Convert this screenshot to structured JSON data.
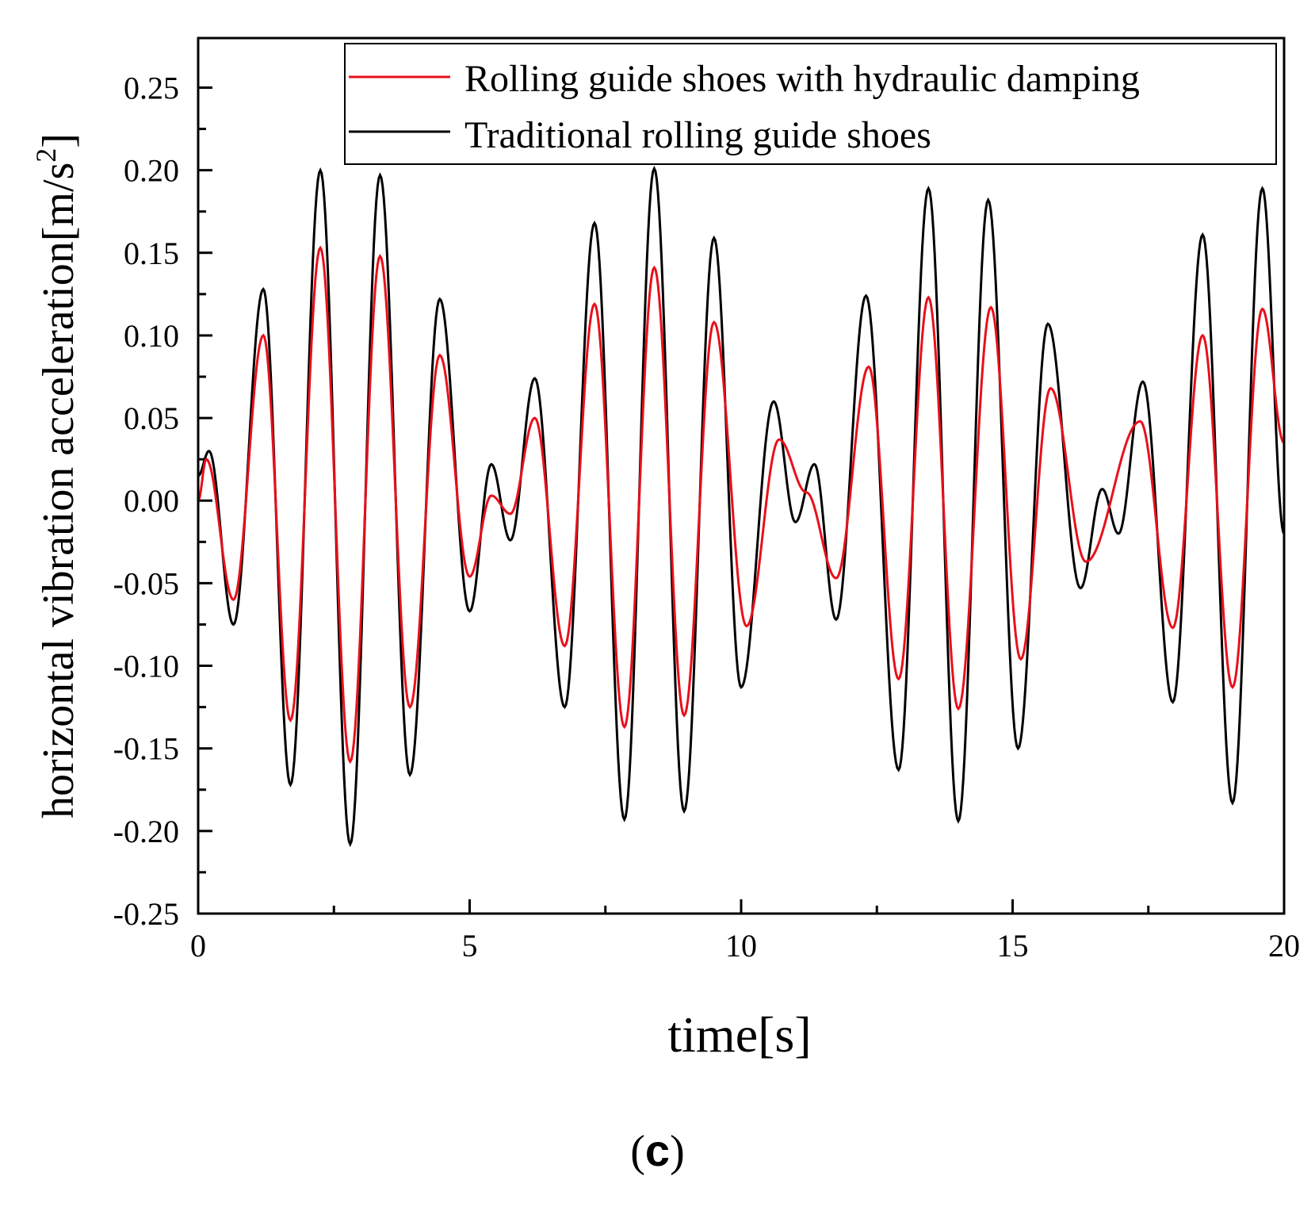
{
  "chart_data": {
    "type": "line",
    "title": "",
    "xlabel": "time[s]",
    "ylabel": "horizontal vibration acceleration[m/s²]",
    "ylabel_parts": {
      "text": "horizontal vibration acceleration[m/s",
      "sup": "2",
      "close": "]"
    },
    "xlim": [
      0,
      20
    ],
    "ylim": [
      -0.25,
      0.28
    ],
    "x_ticks": [
      0,
      5,
      10,
      15,
      20
    ],
    "x_tick_labels": [
      "0",
      "5",
      "10",
      "15",
      "20"
    ],
    "y_ticks": [
      -0.25,
      -0.2,
      -0.15,
      -0.1,
      -0.05,
      0.0,
      0.05,
      0.1,
      0.15,
      0.2,
      0.25
    ],
    "y_tick_labels": [
      "-0.25",
      "-0.20",
      "-0.15",
      "-0.10",
      "-0.05",
      "0.00",
      "0.05",
      "0.10",
      "0.15",
      "0.20",
      "0.25"
    ],
    "grid": false,
    "legend_position": "top-right",
    "series": [
      {
        "name": "Rolling guide shoes with hydraulic damping",
        "color": "#e8101a",
        "extrema": [
          [
            0.0,
            0.0
          ],
          [
            0.15,
            0.025
          ],
          [
            0.65,
            -0.06
          ],
          [
            1.2,
            0.1
          ],
          [
            1.7,
            -0.133
          ],
          [
            2.25,
            0.153
          ],
          [
            2.8,
            -0.158
          ],
          [
            3.35,
            0.148
          ],
          [
            3.9,
            -0.125
          ],
          [
            4.45,
            0.088
          ],
          [
            5.0,
            -0.046
          ],
          [
            5.4,
            0.003
          ],
          [
            5.75,
            -0.008
          ],
          [
            6.2,
            0.05
          ],
          [
            6.75,
            -0.088
          ],
          [
            7.3,
            0.119
          ],
          [
            7.85,
            -0.137
          ],
          [
            8.4,
            0.141
          ],
          [
            8.95,
            -0.13
          ],
          [
            9.5,
            0.108
          ],
          [
            10.1,
            -0.076
          ],
          [
            10.7,
            0.037
          ],
          [
            11.2,
            0.005
          ],
          [
            11.75,
            -0.047
          ],
          [
            12.35,
            0.081
          ],
          [
            12.9,
            -0.108
          ],
          [
            13.45,
            0.123
          ],
          [
            14.0,
            -0.126
          ],
          [
            14.6,
            0.117
          ],
          [
            15.15,
            -0.096
          ],
          [
            15.7,
            0.068
          ],
          [
            16.35,
            -0.037
          ],
          [
            17.35,
            0.048
          ],
          [
            17.95,
            -0.077
          ],
          [
            18.5,
            0.1
          ],
          [
            19.05,
            -0.113
          ],
          [
            19.6,
            0.116
          ],
          [
            20.0,
            0.035
          ]
        ]
      },
      {
        "name": "Traditional rolling guide shoes",
        "color": "#000000",
        "extrema": [
          [
            0.0,
            0.015
          ],
          [
            0.2,
            0.03
          ],
          [
            0.65,
            -0.075
          ],
          [
            1.2,
            0.128
          ],
          [
            1.7,
            -0.172
          ],
          [
            2.25,
            0.2
          ],
          [
            2.8,
            -0.208
          ],
          [
            3.35,
            0.197
          ],
          [
            3.9,
            -0.166
          ],
          [
            4.45,
            0.122
          ],
          [
            5.0,
            -0.067
          ],
          [
            5.4,
            0.022
          ],
          [
            5.75,
            -0.024
          ],
          [
            6.2,
            0.074
          ],
          [
            6.75,
            -0.125
          ],
          [
            7.3,
            0.168
          ],
          [
            7.85,
            -0.193
          ],
          [
            8.4,
            0.201
          ],
          [
            8.95,
            -0.188
          ],
          [
            9.5,
            0.159
          ],
          [
            10.0,
            -0.113
          ],
          [
            10.6,
            0.06
          ],
          [
            11.0,
            -0.013
          ],
          [
            11.35,
            0.022
          ],
          [
            11.75,
            -0.072
          ],
          [
            12.3,
            0.124
          ],
          [
            12.9,
            -0.163
          ],
          [
            13.45,
            0.189
          ],
          [
            14.0,
            -0.194
          ],
          [
            14.55,
            0.182
          ],
          [
            15.1,
            -0.15
          ],
          [
            15.65,
            0.107
          ],
          [
            16.25,
            -0.053
          ],
          [
            16.65,
            0.007
          ],
          [
            16.95,
            -0.02
          ],
          [
            17.4,
            0.072
          ],
          [
            17.95,
            -0.122
          ],
          [
            18.5,
            0.161
          ],
          [
            19.05,
            -0.183
          ],
          [
            19.6,
            0.189
          ],
          [
            20.0,
            -0.02
          ]
        ]
      }
    ]
  },
  "panel_label": "c"
}
